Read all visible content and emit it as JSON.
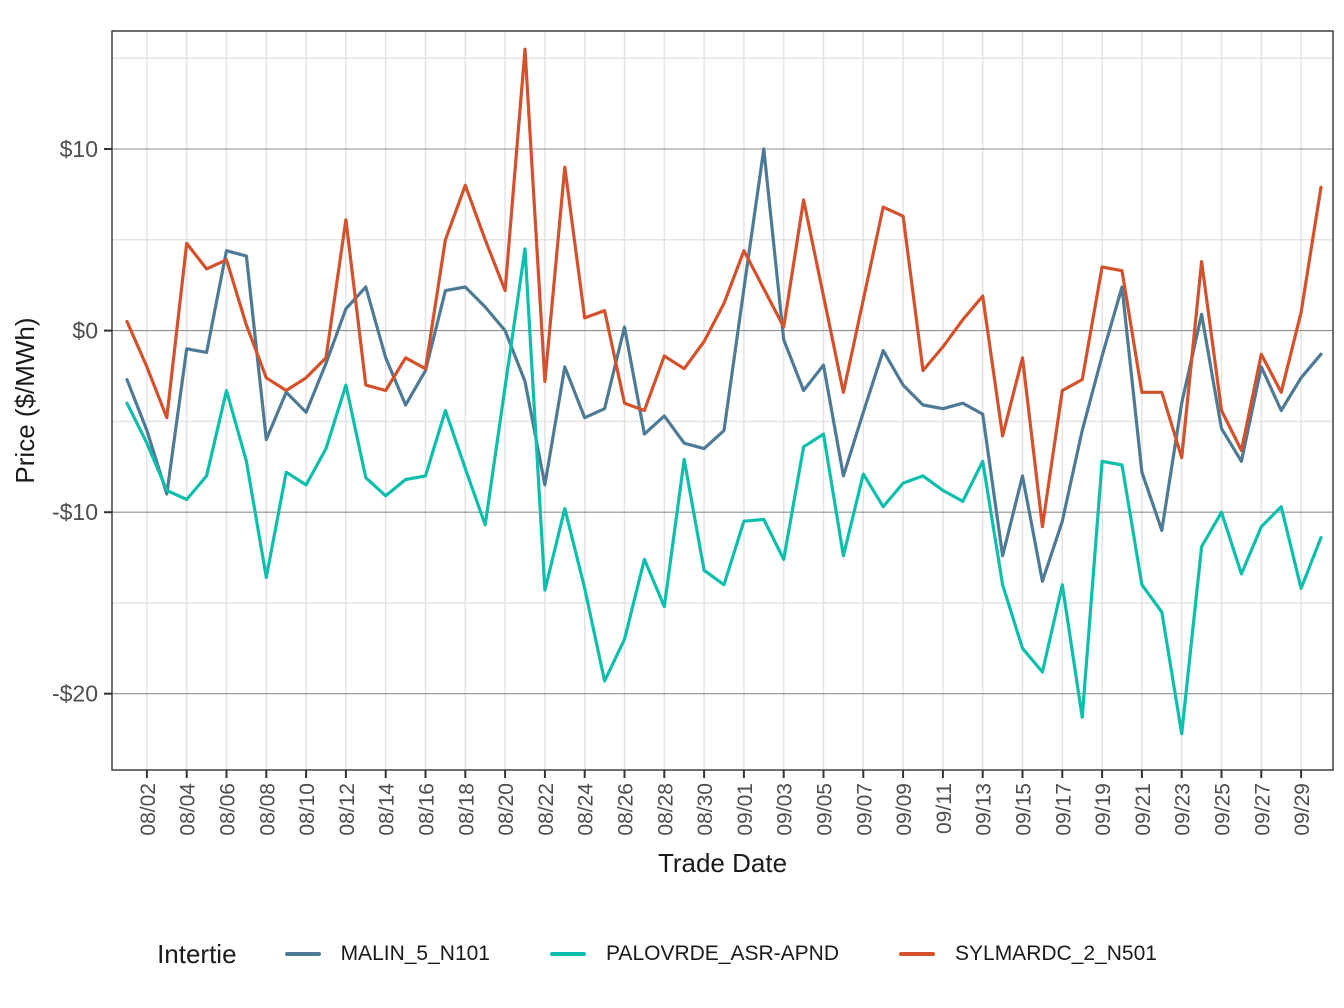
{
  "page": {
    "background_color": "#ffffff"
  },
  "axes": {
    "x": {
      "label": "Trade Date",
      "tick_labels": [
        "08/02",
        "08/04",
        "08/06",
        "08/08",
        "08/10",
        "08/12",
        "08/14",
        "08/16",
        "08/18",
        "08/20",
        "08/22",
        "08/24",
        "08/26",
        "08/28",
        "08/30",
        "09/01",
        "09/03",
        "09/05",
        "09/07",
        "09/09",
        "09/11",
        "09/13",
        "09/15",
        "09/17",
        "09/19",
        "09/21",
        "09/23",
        "09/25",
        "09/27",
        "09/29"
      ]
    },
    "y": {
      "label": "Price ($/MWh)",
      "tick_labels": [
        "$10",
        "$0",
        "-$10",
        "-$20"
      ],
      "tick_values": [
        10,
        0,
        -10,
        -20
      ],
      "minor_tick_values": [
        15,
        5,
        -5,
        -15
      ]
    }
  },
  "legend": {
    "title": "Intertie",
    "items": [
      {
        "label": "MALIN_5_N101",
        "color": "#4e7a96"
      },
      {
        "label": "PALOVRDE_ASR-APND",
        "color": "#0cbfad"
      },
      {
        "label": "SYLMARDC_2_N501",
        "color": "#d3512c"
      }
    ]
  },
  "chart_data": {
    "type": "line",
    "title": "",
    "xlabel": "Trade Date",
    "ylabel": "Price ($/MWh)",
    "ylim": [
      -24.2,
      16.5
    ],
    "grid": "horizontal majors dark gray, minors and vertical day-lines light gray, white panel with thin dark border",
    "legend_position": "bottom",
    "x": [
      "08/01",
      "08/02",
      "08/03",
      "08/04",
      "08/05",
      "08/06",
      "08/07",
      "08/08",
      "08/09",
      "08/10",
      "08/11",
      "08/12",
      "08/13",
      "08/14",
      "08/15",
      "08/16",
      "08/17",
      "08/18",
      "08/19",
      "08/20",
      "08/21",
      "08/22",
      "08/23",
      "08/24",
      "08/25",
      "08/26",
      "08/27",
      "08/28",
      "08/29",
      "08/30",
      "08/31",
      "09/01",
      "09/02",
      "09/03",
      "09/04",
      "09/05",
      "09/06",
      "09/07",
      "09/08",
      "09/09",
      "09/10",
      "09/11",
      "09/12",
      "09/13",
      "09/14",
      "09/15",
      "09/16",
      "09/17",
      "09/18",
      "09/19",
      "09/20",
      "09/21",
      "09/22",
      "09/23",
      "09/24",
      "09/25",
      "09/26",
      "09/27",
      "09/28",
      "09/29",
      "09/30"
    ],
    "series": [
      {
        "name": "MALIN_5_N101",
        "color": "#4e7a96",
        "values": [
          -2.7,
          -5.5,
          -9.0,
          -1.0,
          -1.2,
          4.4,
          4.1,
          -6.0,
          -3.4,
          -4.5,
          -1.8,
          1.2,
          2.4,
          -1.5,
          -4.1,
          -2.2,
          2.2,
          2.4,
          1.3,
          0.0,
          -2.8,
          -8.5,
          -2.0,
          -4.8,
          -4.3,
          0.2,
          -5.7,
          -4.7,
          -6.2,
          -6.5,
          -5.5,
          2.3,
          10.0,
          -0.5,
          -3.3,
          -1.9,
          -8.0,
          -4.5,
          -1.1,
          -3.0,
          -4.1,
          -4.3,
          -4.0,
          -4.6,
          -12.4,
          -8.0,
          -13.8,
          -10.5,
          -5.5,
          -1.4,
          2.4,
          -7.8,
          -11.0,
          -4.0,
          0.9,
          -5.4,
          -7.2,
          -2.0,
          -4.4,
          -2.6,
          -1.3
        ]
      },
      {
        "name": "PALOVRDE_ASR-APND",
        "color": "#0cbfad",
        "values": [
          -4.0,
          -6.2,
          -8.8,
          -9.3,
          -8.0,
          -3.3,
          -7.2,
          -13.6,
          -7.8,
          -8.5,
          -6.5,
          -3.0,
          -8.1,
          -9.1,
          -8.2,
          -8.0,
          -4.4,
          -7.6,
          -10.7,
          -3.1,
          4.5,
          -14.3,
          -9.8,
          -14.2,
          -19.3,
          -17.0,
          -12.6,
          -15.2,
          -7.1,
          -13.2,
          -14.0,
          -10.5,
          -10.4,
          -12.6,
          -6.4,
          -5.7,
          -12.4,
          -7.9,
          -9.7,
          -8.4,
          -8.0,
          -8.8,
          -9.4,
          -7.2,
          -14.0,
          -17.5,
          -18.8,
          -14.0,
          -21.3,
          -7.2,
          -7.4,
          -14.0,
          -15.5,
          -22.2,
          -11.9,
          -10.0,
          -13.4,
          -10.8,
          -9.7,
          -14.2,
          -11.4
        ]
      },
      {
        "name": "SYLMARDC_2_N501",
        "color": "#d3512c",
        "values": [
          0.5,
          -2.0,
          -4.8,
          4.8,
          3.4,
          3.9,
          0.3,
          -2.6,
          -3.3,
          -2.6,
          -1.5,
          6.1,
          -3.0,
          -3.3,
          -1.5,
          -2.1,
          5.0,
          8.0,
          5.0,
          2.2,
          15.5,
          -2.8,
          9.0,
          0.7,
          1.1,
          -4.0,
          -4.4,
          -1.4,
          -2.1,
          -0.6,
          1.5,
          4.4,
          2.3,
          0.2,
          7.2,
          1.9,
          -3.4,
          1.7,
          6.8,
          6.3,
          -2.2,
          -0.9,
          0.6,
          1.9,
          -5.8,
          -1.5,
          -10.8,
          -3.3,
          -2.7,
          3.5,
          3.3,
          -3.4,
          -3.4,
          -7.0,
          3.8,
          -4.4,
          -6.6,
          -1.3,
          -3.4,
          1.0,
          7.9
        ]
      }
    ],
    "style": {
      "major_grid_color": "#8f8f8f",
      "minor_grid_color": "#e4e4e4",
      "panel_border_color": "#333333",
      "tick_color": "#333333",
      "tick_label_color": "#4d4d4d",
      "axis_title_color": "#1a1a1a"
    }
  }
}
